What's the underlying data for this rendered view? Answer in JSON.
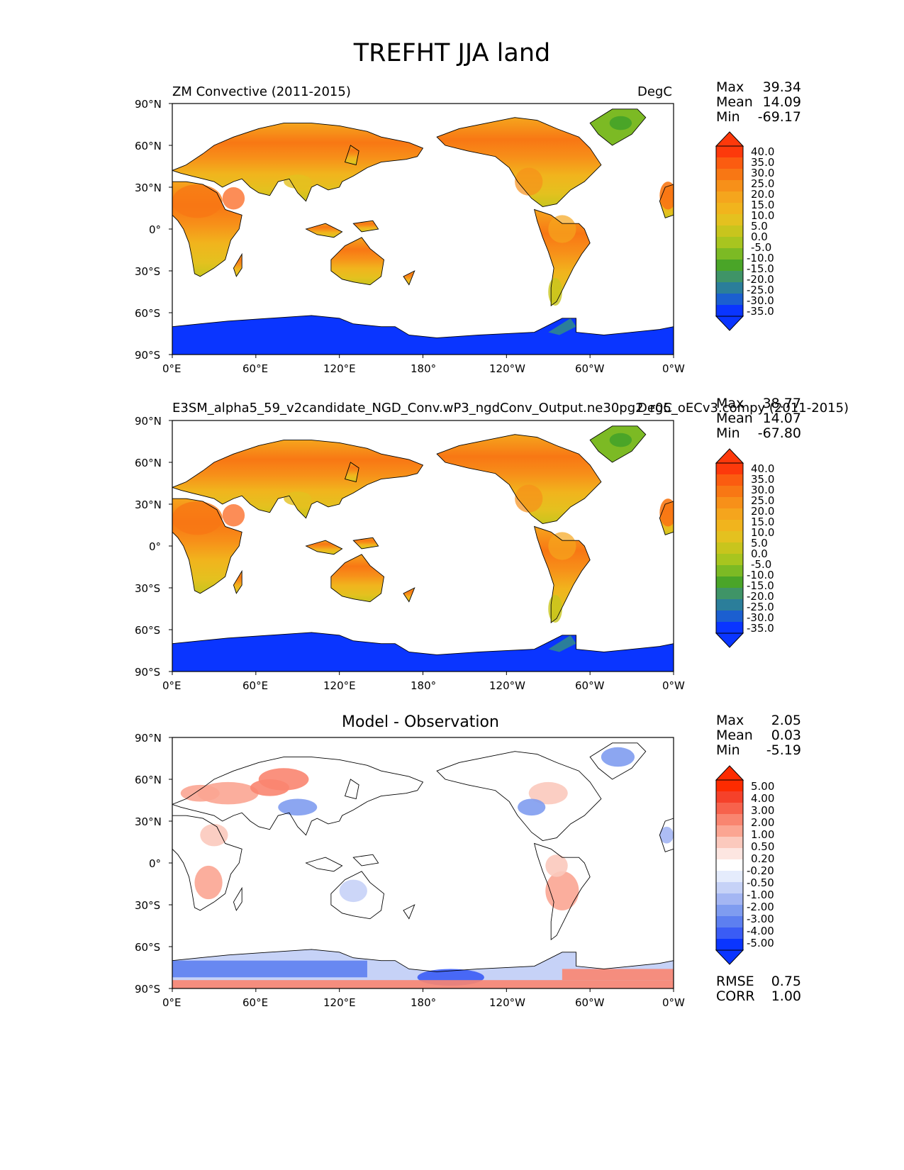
{
  "figure": {
    "title": "TREFHT JJA land"
  },
  "colors": {
    "ocean": "#ffffff",
    "antarctica": "#0a35ff",
    "coast": "#000000",
    "abs_scale": [
      "#0a35ff",
      "#1b5fd0",
      "#2b7e9a",
      "#3f9467",
      "#4aa528",
      "#7cba24",
      "#a8c51f",
      "#c8c51d",
      "#e4c11f",
      "#f1b41d",
      "#f5a51d",
      "#f79019",
      "#f87714",
      "#fb5c10",
      "#fd390b"
    ],
    "diff_scale": [
      "#0a35ff",
      "#3a5cf5",
      "#5d7ff0",
      "#7f9cf0",
      "#a4b6f3",
      "#c6d2f7",
      "#e5ecfc",
      "#ffffff",
      "#fde6e1",
      "#fbc9bd",
      "#fba592",
      "#f98570",
      "#f7624c",
      "#f5412a",
      "#fd2b00"
    ]
  },
  "chart_data": [
    {
      "type": "heatmap",
      "subtitle_left": "ZM Convective (2011-2015)",
      "subtitle_right": "DegC",
      "stats": {
        "max_label": "Max",
        "max": "39.34",
        "mean_label": "Mean",
        "mean": "14.09",
        "min_label": "Min",
        "min": "-69.17"
      },
      "colorbar_labels": [
        "40.0",
        "35.0",
        "30.0",
        "25.0",
        "20.0",
        "15.0",
        "10.0",
        "5.0",
        "0.0",
        "-5.0",
        "-10.0",
        "-15.0",
        "-20.0",
        "-25.0",
        "-30.0",
        "-35.0"
      ],
      "xticks": [
        "0°E",
        "60°E",
        "120°E",
        "180°",
        "120°W",
        "60°W",
        "0°W"
      ],
      "yticks": [
        "90°N",
        "60°N",
        "30°N",
        "0°",
        "30°S",
        "60°S",
        "90°S"
      ],
      "xlim": [
        0,
        360
      ],
      "ylim": [
        -90,
        90
      ]
    },
    {
      "type": "heatmap",
      "subtitle_left": "E3SM_alpha5_59_v2candidate_NGD_Conv.wP3_ngdConv_Output.ne30pg2_r05_oECv3.compy (2011-2015)",
      "subtitle_right": "DegC",
      "stats": {
        "max_label": "Max",
        "max": "38.77",
        "mean_label": "Mean",
        "mean": "14.07",
        "min_label": "Min",
        "min": "-67.80"
      },
      "colorbar_labels": [
        "40.0",
        "35.0",
        "30.0",
        "25.0",
        "20.0",
        "15.0",
        "10.0",
        "5.0",
        "0.0",
        "-5.0",
        "-10.0",
        "-15.0",
        "-20.0",
        "-25.0",
        "-30.0",
        "-35.0"
      ],
      "xticks": [
        "0°E",
        "60°E",
        "120°E",
        "180°",
        "120°W",
        "60°W",
        "0°W"
      ],
      "yticks": [
        "90°N",
        "60°N",
        "30°N",
        "0°",
        "30°S",
        "60°S",
        "90°S"
      ],
      "xlim": [
        0,
        360
      ],
      "ylim": [
        -90,
        90
      ]
    },
    {
      "type": "heatmap",
      "subtitle_center": "Model - Observation",
      "stats": {
        "max_label": "Max",
        "max": "2.05",
        "mean_label": "Mean",
        "mean": "0.03",
        "min_label": "Min",
        "min": "-5.19"
      },
      "colorbar_labels": [
        "5.00",
        "4.00",
        "3.00",
        "2.00",
        "1.00",
        "0.50",
        "0.20",
        "-0.20",
        "-0.50",
        "-1.00",
        "-2.00",
        "-3.00",
        "-4.00",
        "-5.00"
      ],
      "xticks": [
        "0°E",
        "60°E",
        "120°E",
        "180°",
        "120°W",
        "60°W",
        "0°W"
      ],
      "yticks": [
        "90°N",
        "60°N",
        "30°N",
        "0°",
        "30°S",
        "60°S",
        "90°S"
      ],
      "xlim": [
        0,
        360
      ],
      "ylim": [
        -90,
        90
      ],
      "metrics": {
        "rmse_label": "RMSE",
        "rmse": "0.75",
        "corr_label": "CORR",
        "corr": "1.00"
      }
    }
  ]
}
